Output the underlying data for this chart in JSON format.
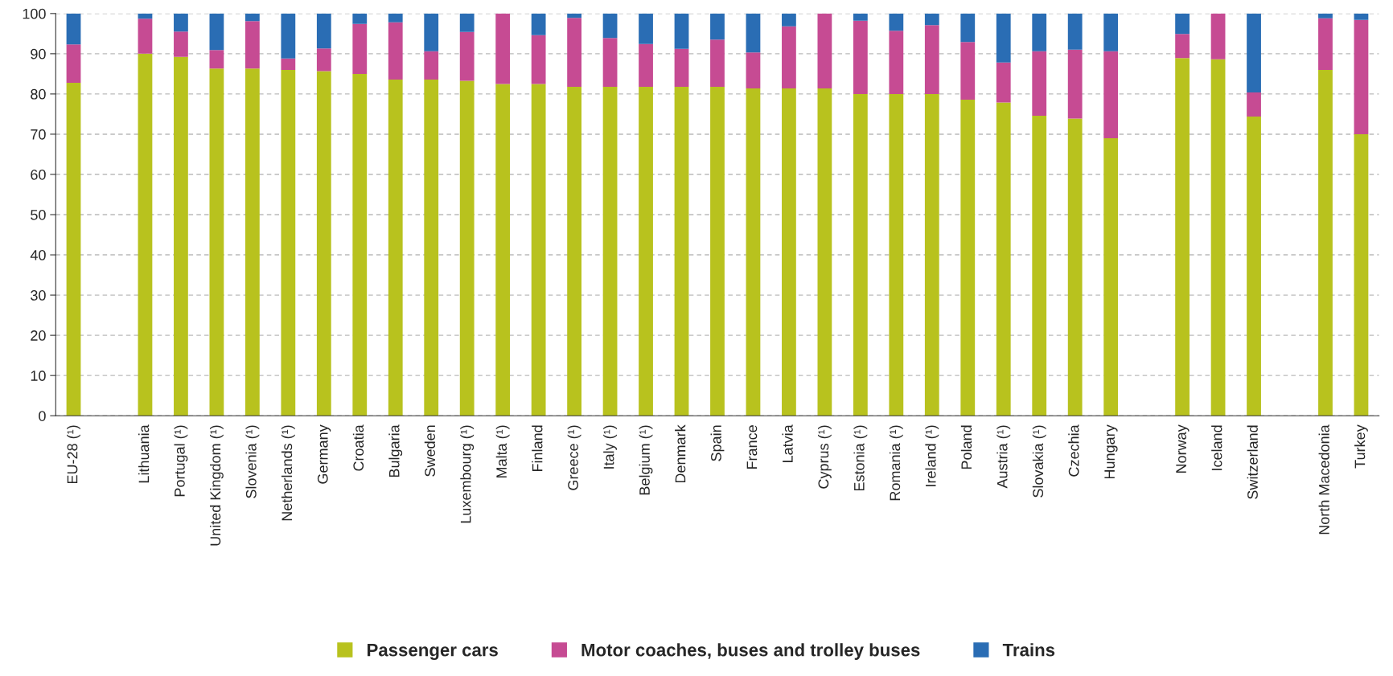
{
  "chart_data": {
    "type": "bar",
    "stacked": true,
    "categories": [
      "EU-28 (¹)",
      null,
      "Lithuania",
      "Portugal (¹)",
      "United Kingdom (¹)",
      "Slovenia (¹)",
      "Netherlands (¹)",
      "Germany",
      "Croatia",
      "Bulgaria",
      "Sweden",
      "Luxembourg (¹)",
      "Malta (¹)",
      "Finland",
      "Greece (¹)",
      "Italy (¹)",
      "Belgium (¹)",
      "Denmark",
      "Spain",
      "France",
      "Latvia",
      "Cyprus (¹)",
      "Estonia (¹)",
      "Romania (¹)",
      "Ireland (¹)",
      "Poland",
      "Austria (¹)",
      "Slovakia (¹)",
      "Czechia",
      "Hungary",
      null,
      "Norway",
      "Iceland",
      "Switzerland",
      null,
      "North Macedonia",
      "Turkey"
    ],
    "series": [
      {
        "name": "Passenger cars",
        "color": "#b8c21e",
        "values": [
          82.8,
          null,
          90,
          89.2,
          86.3,
          86.3,
          86,
          85.7,
          85,
          83.6,
          83.6,
          83.3,
          82.5,
          82.5,
          81.8,
          81.8,
          81.8,
          81.8,
          81.8,
          81.4,
          81.4,
          81.4,
          80,
          80,
          80,
          78.6,
          77.9,
          74.6,
          73.9,
          69,
          null,
          88.9,
          88.6,
          74.4,
          null,
          86,
          70
        ]
      },
      {
        "name": "Motor coaches, buses and trolley buses",
        "color": "#c64b93",
        "values": [
          9.5,
          null,
          8.7,
          6.3,
          4.6,
          11.8,
          2.8,
          5.6,
          12.4,
          14.2,
          7,
          12.1,
          17.5,
          12.1,
          17.1,
          12.1,
          10.6,
          9.4,
          11.7,
          8.9,
          15.4,
          18.6,
          18.2,
          15.7,
          17.1,
          14.3,
          9.9,
          16,
          17.1,
          21.6,
          null,
          6,
          11.4,
          6,
          null,
          12.8,
          28.4
        ]
      },
      {
        "name": "Trains",
        "color": "#2a6db4",
        "values": [
          7.7,
          null,
          1.3,
          4.5,
          9.1,
          1.9,
          11.2,
          8.7,
          2.6,
          2.2,
          9.4,
          4.6,
          0,
          5.4,
          1.1,
          6.1,
          7.6,
          8.8,
          6.5,
          9.7,
          3.2,
          0,
          1.8,
          4.3,
          2.9,
          7.1,
          12.2,
          9.4,
          9,
          9.4,
          null,
          5.1,
          0,
          19.6,
          null,
          1.2,
          1.6
        ]
      }
    ],
    "ylim": [
      0,
      100
    ],
    "yticks": [
      0,
      10,
      20,
      30,
      40,
      50,
      60,
      70,
      80,
      90,
      100
    ],
    "grid": "y",
    "legend": "bottom"
  }
}
